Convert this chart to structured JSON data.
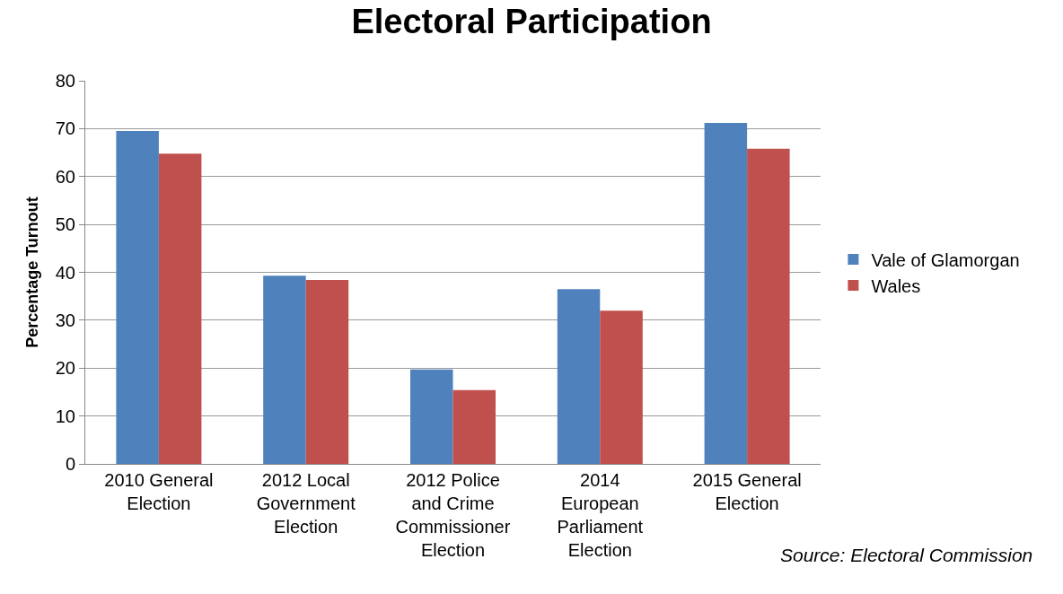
{
  "chart_data": {
    "type": "bar",
    "title": "Electoral Participation",
    "ylabel": "Percentage Turnout",
    "categories": [
      "2010 General Election",
      "2012 Local Government Election",
      "2012 Police and Crime Commissioner Election",
      "2014 European Parliament Election",
      "2015 General Election"
    ],
    "series": [
      {
        "name": "Vale of Glamorgan",
        "color": "#4f81bd",
        "values": [
          69.5,
          39.3,
          19.7,
          36.5,
          71.2
        ]
      },
      {
        "name": "Wales",
        "color": "#c0504d",
        "values": [
          64.8,
          38.4,
          15.4,
          32.0,
          65.8
        ]
      }
    ],
    "ylim": [
      0,
      80
    ],
    "yticks": [
      0,
      10,
      20,
      30,
      40,
      50,
      60,
      70,
      80
    ],
    "grid": "y",
    "legend": "right",
    "annotations": [
      "Source: Electoral Commission"
    ]
  }
}
